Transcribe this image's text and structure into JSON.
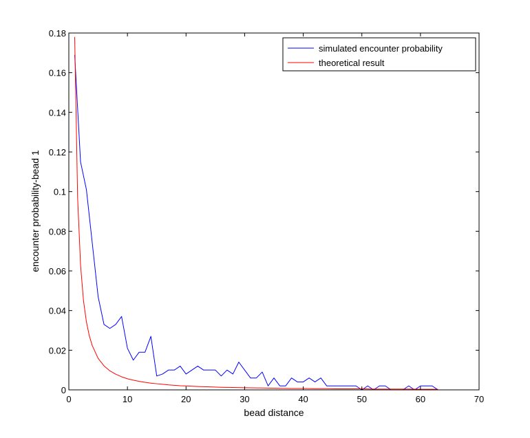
{
  "chart_data": {
    "type": "line",
    "title": "",
    "xlabel": "bead distance",
    "ylabel": "encounter probability-bead 1",
    "xlim": [
      0,
      70
    ],
    "ylim": [
      0,
      0.18
    ],
    "xticks": [
      0,
      10,
      20,
      30,
      40,
      50,
      60,
      70
    ],
    "yticks": [
      0,
      0.02,
      0.04,
      0.06,
      0.08,
      0.1,
      0.12,
      0.14,
      0.16,
      0.18
    ],
    "xtick_labels": [
      "0",
      "10",
      "20",
      "30",
      "40",
      "50",
      "60",
      "70"
    ],
    "ytick_labels": [
      "0",
      "0.02",
      "0.04",
      "0.06",
      "0.08",
      "0.1",
      "0.12",
      "0.14",
      "0.16",
      "0.18"
    ],
    "grid": false,
    "legend_position": "top-right",
    "series": [
      {
        "name": "simulated encounter probability",
        "color": "#0000ff",
        "x": [
          1,
          2,
          3,
          4,
          5,
          6,
          7,
          8,
          9,
          10,
          11,
          12,
          13,
          14,
          15,
          16,
          17,
          18,
          19,
          20,
          21,
          22,
          23,
          24,
          25,
          26,
          27,
          28,
          29,
          30,
          31,
          32,
          33,
          34,
          35,
          36,
          37,
          38,
          39,
          40,
          41,
          42,
          43,
          44,
          45,
          46,
          47,
          48,
          49,
          50,
          51,
          52,
          53,
          54,
          55,
          56,
          57,
          58,
          59,
          60,
          61,
          62,
          63
        ],
        "values": [
          0.169,
          0.115,
          0.101,
          0.074,
          0.047,
          0.033,
          0.031,
          0.033,
          0.037,
          0.021,
          0.015,
          0.019,
          0.019,
          0.027,
          0.007,
          0.008,
          0.01,
          0.01,
          0.012,
          0.008,
          0.01,
          0.012,
          0.01,
          0.01,
          0.01,
          0.007,
          0.01,
          0.008,
          0.014,
          0.01,
          0.006,
          0.006,
          0.009,
          0.002,
          0.006,
          0.002,
          0.002,
          0.006,
          0.004,
          0.004,
          0.006,
          0.004,
          0.006,
          0.002,
          0.002,
          0.002,
          0.002,
          0.002,
          0.002,
          0.0,
          0.002,
          0.0,
          0.002,
          0.002,
          0.0,
          0.0,
          0.0,
          0.002,
          0.0,
          0.002,
          0.002,
          0.002,
          0.0
        ]
      },
      {
        "name": "theoretical result",
        "color": "#ff0000",
        "x": [
          1,
          1.5,
          2,
          2.5,
          3,
          3.5,
          4,
          5,
          6,
          7,
          8,
          9,
          10,
          11,
          12,
          13,
          14,
          15,
          16,
          17,
          18,
          19,
          20,
          22,
          24,
          26,
          28,
          30,
          32,
          34,
          36,
          38,
          40,
          42,
          44,
          46,
          48,
          50,
          52,
          54,
          56,
          58,
          60,
          62,
          63
        ],
        "values": [
          0.178,
          0.097,
          0.063,
          0.045,
          0.0343,
          0.0272,
          0.0223,
          0.0159,
          0.0121,
          0.0096,
          0.0079,
          0.0066,
          0.0056,
          0.0049,
          0.0043,
          0.0038,
          0.0034,
          0.0031,
          0.0028,
          0.0025,
          0.0023,
          0.0021,
          0.002,
          0.0017,
          0.0015,
          0.0013,
          0.0012,
          0.0011,
          0.001,
          0.0009,
          0.0008,
          0.0007,
          0.0007,
          0.0006,
          0.0006,
          0.0005,
          0.0005,
          0.0005,
          0.0004,
          0.0004,
          0.0004,
          0.0004,
          0.0003,
          0.0003,
          0.0003
        ]
      }
    ]
  }
}
